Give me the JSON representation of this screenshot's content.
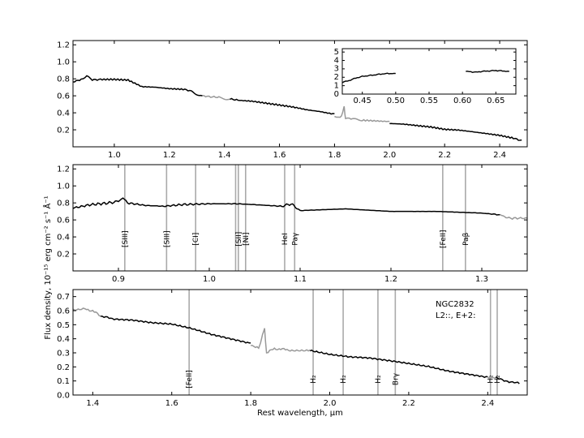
{
  "figure": {
    "ylabel": "Flux density, 10⁻¹⁵ erg cm⁻² s⁻¹ Å⁻¹",
    "xlabel": "Rest wavelength, μm",
    "object_name": "NGC2832",
    "classification": "L2::,  E+2:"
  },
  "chart_data": [
    {
      "id": "panel1",
      "type": "line",
      "xlim": [
        0.85,
        2.5
      ],
      "ylim": [
        0.0,
        1.25
      ],
      "xticks": [
        1.0,
        1.2,
        1.4,
        1.6,
        1.8,
        2.0,
        2.2,
        2.4
      ],
      "xtick_labels": [
        "1.0",
        "1.2",
        "1.4",
        "1.6",
        "1.8",
        "2.0",
        "2.2",
        "2.4"
      ],
      "yticks": [
        0.2,
        0.4,
        0.6,
        0.8,
        1.0,
        1.2
      ],
      "ytick_labels": [
        "0.2",
        "0.4",
        "0.6",
        "0.8",
        "1.0",
        "1.2"
      ],
      "series": [
        {
          "color": "#000000",
          "x": [
            0.85,
            0.88,
            0.9,
            0.92,
            0.95,
            1.0,
            1.05,
            1.1,
            1.15,
            1.2,
            1.25,
            1.28,
            1.32
          ],
          "y": [
            0.77,
            0.8,
            0.84,
            0.79,
            0.8,
            0.8,
            0.79,
            0.71,
            0.7,
            0.68,
            0.67,
            0.65,
            0.6
          ]
        },
        {
          "color": "#999999",
          "x": [
            1.32,
            1.35,
            1.38,
            1.42
          ],
          "y": [
            0.6,
            0.58,
            0.58,
            0.56
          ]
        },
        {
          "color": "#000000",
          "x": [
            1.42,
            1.45,
            1.5,
            1.55,
            1.6,
            1.65,
            1.7,
            1.75,
            1.8
          ],
          "y": [
            0.56,
            0.54,
            0.53,
            0.51,
            0.49,
            0.47,
            0.44,
            0.42,
            0.39
          ]
        },
        {
          "color": "#999999",
          "x": [
            1.8,
            1.82,
            1.83,
            1.835,
            1.84,
            1.86,
            1.9,
            1.95,
            2.0
          ],
          "y": [
            0.37,
            0.34,
            0.41,
            0.47,
            0.33,
            0.32,
            0.32,
            0.31,
            0.3
          ]
        },
        {
          "color": "#000000",
          "x": [
            2.0,
            2.05,
            2.1,
            2.15,
            2.2,
            2.25,
            2.3,
            2.35,
            2.4,
            2.45,
            2.48
          ],
          "y": [
            0.28,
            0.27,
            0.25,
            0.23,
            0.2,
            0.19,
            0.17,
            0.15,
            0.13,
            0.1,
            0.08
          ]
        }
      ]
    },
    {
      "id": "panel1-inset",
      "type": "line",
      "xlim": [
        0.42,
        0.68
      ],
      "ylim": [
        0,
        5.4
      ],
      "xticks": [
        0.45,
        0.5,
        0.55,
        0.6,
        0.65
      ],
      "xtick_labels": [
        "0.45",
        "0.50",
        "0.55",
        "0.60",
        "0.65"
      ],
      "yticks": [
        0,
        1,
        2,
        3,
        4,
        5
      ],
      "ytick_labels": [
        "0",
        "1",
        "2",
        "3",
        "4",
        "5"
      ],
      "series": [
        {
          "color": "#000000",
          "x": [
            0.42,
            0.43,
            0.44,
            0.45,
            0.46,
            0.47,
            0.48,
            0.49,
            0.5
          ],
          "y": [
            1.4,
            1.6,
            1.9,
            2.1,
            2.2,
            2.3,
            2.4,
            2.45,
            2.45
          ]
        },
        {
          "color": "#000000",
          "x": [
            0.605,
            0.62,
            0.63,
            0.64,
            0.65,
            0.66,
            0.67
          ],
          "y": [
            2.7,
            2.6,
            2.7,
            2.75,
            2.8,
            2.75,
            2.7
          ]
        }
      ]
    },
    {
      "id": "panel2",
      "type": "line",
      "xlim": [
        0.85,
        1.35
      ],
      "ylim": [
        0.0,
        1.25
      ],
      "xticks": [
        0.9,
        1.0,
        1.1,
        1.2,
        1.3
      ],
      "xtick_labels": [
        "0.9",
        "1.0",
        "1.1",
        "1.2",
        "1.3"
      ],
      "yticks": [
        0.2,
        0.4,
        0.6,
        0.8,
        1.0,
        1.2
      ],
      "ytick_labels": [
        "0.2",
        "0.4",
        "0.6",
        "0.8",
        "1.0",
        "1.2"
      ],
      "series": [
        {
          "color": "#000000",
          "x": [
            0.85,
            0.87,
            0.89,
            0.9,
            0.905,
            0.91,
            0.93,
            0.95,
            0.97,
            1.0,
            1.03,
            1.05,
            1.08,
            1.09,
            1.1,
            1.15,
            1.2,
            1.25,
            1.3,
            1.32
          ],
          "y": [
            0.74,
            0.78,
            0.8,
            0.82,
            0.86,
            0.8,
            0.77,
            0.76,
            0.78,
            0.79,
            0.79,
            0.78,
            0.76,
            0.79,
            0.71,
            0.73,
            0.7,
            0.7,
            0.68,
            0.66
          ]
        },
        {
          "color": "#999999",
          "x": [
            1.32,
            1.33,
            1.35
          ],
          "y": [
            0.66,
            0.62,
            0.62
          ]
        }
      ],
      "lines": [
        {
          "x": 0.907,
          "label": "[SIII]"
        },
        {
          "x": 0.953,
          "label": "[SIII]"
        },
        {
          "x": 0.985,
          "label": "[CI]"
        },
        {
          "x": 1.029,
          "label": ""
        },
        {
          "x": 1.032,
          "label": "[SII]"
        },
        {
          "x": 1.04,
          "label": "[NI]"
        },
        {
          "x": 1.083,
          "label": "HeI"
        },
        {
          "x": 1.094,
          "label": "Paγ"
        },
        {
          "x": 1.257,
          "label": "[FeII]"
        },
        {
          "x": 1.282,
          "label": "Paβ"
        }
      ]
    },
    {
      "id": "panel3",
      "type": "line",
      "xlim": [
        1.35,
        2.5
      ],
      "ylim": [
        0.0,
        0.75
      ],
      "xticks": [
        1.4,
        1.6,
        1.8,
        2.0,
        2.2,
        2.4
      ],
      "xtick_labels": [
        "1.4",
        "1.6",
        "1.8",
        "2.0",
        "2.2",
        "2.4"
      ],
      "yticks": [
        0.0,
        0.1,
        0.2,
        0.3,
        0.4,
        0.5,
        0.6,
        0.7
      ],
      "ytick_labels": [
        "0.0",
        "0.1",
        "0.2",
        "0.3",
        "0.4",
        "0.5",
        "0.6",
        "0.7"
      ],
      "series": [
        {
          "color": "#999999",
          "x": [
            1.35,
            1.38,
            1.4,
            1.42
          ],
          "y": [
            0.61,
            0.61,
            0.6,
            0.56
          ]
        },
        {
          "color": "#000000",
          "x": [
            1.42,
            1.45,
            1.5,
            1.55,
            1.6,
            1.65,
            1.7,
            1.75,
            1.8
          ],
          "y": [
            0.56,
            0.54,
            0.53,
            0.51,
            0.5,
            0.47,
            0.43,
            0.4,
            0.37
          ]
        },
        {
          "color": "#999999",
          "x": [
            1.8,
            1.82,
            1.83,
            1.835,
            1.84,
            1.86,
            1.9,
            1.95
          ],
          "y": [
            0.36,
            0.33,
            0.43,
            0.47,
            0.3,
            0.33,
            0.32,
            0.32
          ]
        },
        {
          "color": "#000000",
          "x": [
            1.95,
            2.0,
            2.05,
            2.1,
            2.15,
            2.2,
            2.25,
            2.3,
            2.35,
            2.4
          ],
          "y": [
            0.32,
            0.29,
            0.27,
            0.26,
            0.24,
            0.22,
            0.2,
            0.17,
            0.15,
            0.13
          ]
        },
        {
          "color": "#999999",
          "x": [
            2.4,
            2.42
          ],
          "y": [
            0.13,
            0.12
          ]
        },
        {
          "color": "#000000",
          "x": [
            2.42,
            2.45,
            2.48
          ],
          "y": [
            0.12,
            0.1,
            0.08
          ]
        }
      ],
      "lines": [
        {
          "x": 1.644,
          "label": "[FeII]"
        },
        {
          "x": 1.958,
          "label": "H₂"
        },
        {
          "x": 2.034,
          "label": "H₂"
        },
        {
          "x": 2.122,
          "label": "H₂"
        },
        {
          "x": 2.166,
          "label": "Brγ"
        },
        {
          "x": 2.407,
          "label": "H₂"
        },
        {
          "x": 2.424,
          "label": "H₂"
        }
      ]
    }
  ]
}
